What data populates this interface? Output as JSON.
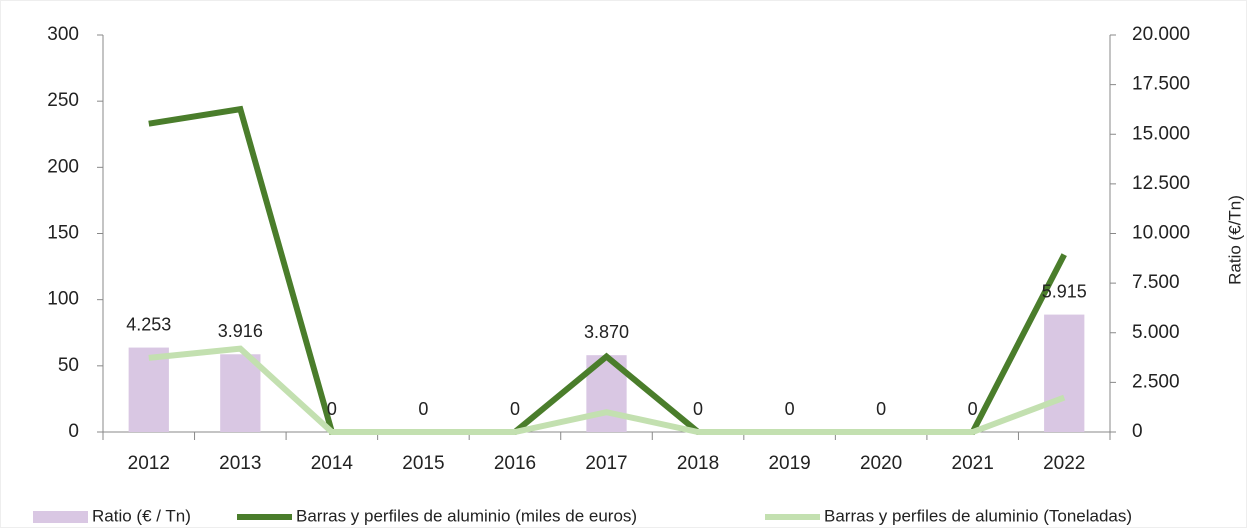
{
  "chart_data": {
    "type": "bar",
    "categories": [
      "2012",
      "2013",
      "2014",
      "2015",
      "2016",
      "2017",
      "2018",
      "2019",
      "2020",
      "2021",
      "2022"
    ],
    "series": [
      {
        "name": "Ratio (€ / Tn)",
        "type": "bar",
        "axis": "y2",
        "color": "#d9c7e3",
        "values": [
          4253,
          3916,
          0,
          0,
          0,
          3870,
          0,
          0,
          0,
          0,
          5915
        ],
        "value_labels": [
          "4.253",
          "3.916",
          "0",
          "0",
          "0",
          "3.870",
          "0",
          "0",
          "0",
          "0",
          "5.915"
        ]
      },
      {
        "name": "Barras y perfiles de aluminio (miles de euros)",
        "type": "line",
        "color": "#4a7d2b",
        "values": [
          233,
          244,
          0,
          0,
          0,
          57,
          0,
          0,
          0,
          0,
          134
        ]
      },
      {
        "name": "Barras y perfiles de aluminio (Toneladas)",
        "type": "line",
        "color": "#c3e0b0",
        "values": [
          56,
          63,
          0,
          0,
          0,
          15,
          0,
          0,
          0,
          0,
          26
        ]
      }
    ],
    "ylim": [
      0,
      300
    ],
    "yticks": [
      0,
      50,
      100,
      150,
      200,
      250,
      300
    ],
    "y2lim": [
      0,
      20000
    ],
    "y2ticks": [
      0,
      {
        "value": 2500,
        "label": "2.500"
      },
      {
        "value": 5000,
        "label": "5.000"
      },
      {
        "value": 7500,
        "label": "7.500"
      },
      {
        "value": 10000,
        "label": "10.000"
      },
      {
        "value": 12500,
        "label": "12.500"
      },
      {
        "value": 15000,
        "label": "15.000"
      },
      {
        "value": 17500,
        "label": "17.500"
      },
      {
        "value": 20000,
        "label": "20.000"
      }
    ],
    "y2label": "Ratio (€/Tn)",
    "legend": "bottom"
  }
}
